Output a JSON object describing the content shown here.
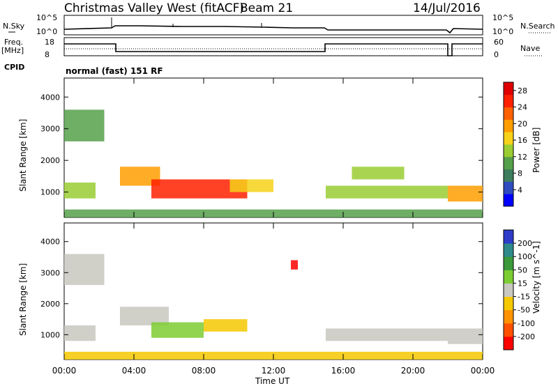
{
  "header": {
    "title": "Christmas Valley West (fitACF)",
    "beam": "Beam 21",
    "date": "14/Jul/2016"
  },
  "top_panels": {
    "nsky_label": "N.Sky",
    "nsky_ticks": [
      "10^5",
      "10^0"
    ],
    "nsearch_label": "N.Search",
    "nsearch_ticks": [
      "10^5",
      "10^0"
    ],
    "freq_label": "Freq.",
    "freq_unit": "[MHz]",
    "freq_ticks": [
      "18",
      "8"
    ],
    "nave_label": "Nave",
    "nave_ticks": [
      "60",
      "0"
    ],
    "cpid_label": "CPID",
    "cpid_value": "normal (fast) 151 RF"
  },
  "colors": {
    "power_scale": [
      "#0000ff",
      "#2e4cc0",
      "#3c7e5c",
      "#55a04a",
      "#9acd32",
      "#f6d21a",
      "#ff9d00",
      "#ff6000",
      "#ff2000",
      "#e00000"
    ],
    "velocity_scale": [
      "#2e3cc8",
      "#2e8a8a",
      "#3a9a3a",
      "#7ccd32",
      "#c8c8c0",
      "#f5c800",
      "#ff9200",
      "#ff5000",
      "#ff0000"
    ]
  },
  "chart_data": [
    {
      "type": "heatmap",
      "panel": "power",
      "ylabel": "Slant Range [km]",
      "xlabel": "Time UT",
      "x_ticks": [
        "00:00",
        "04:00",
        "08:00",
        "12:00",
        "16:00",
        "20:00",
        "00:00"
      ],
      "y_ticks": [
        "1000",
        "2000",
        "3000",
        "4000"
      ],
      "xlim_hours": [
        0,
        24
      ],
      "ylim_km": [
        200,
        4600
      ],
      "colorbar_label": "Power [dB]",
      "colorbar_ticks": [
        "4",
        "8",
        "12",
        "16",
        "20",
        "24",
        "28"
      ],
      "colorbar_range": [
        0,
        30
      ],
      "regions": [
        {
          "t0": 0.0,
          "t1": 1.8,
          "r0": 800,
          "r1": 1300,
          "value": 14
        },
        {
          "t0": 0.0,
          "t1": 2.3,
          "r0": 2600,
          "r1": 3600,
          "value": 9
        },
        {
          "t0": 3.2,
          "t1": 5.5,
          "r0": 1200,
          "r1": 1800,
          "value": 20
        },
        {
          "t0": 5.0,
          "t1": 10.5,
          "r0": 800,
          "r1": 1400,
          "value": 24
        },
        {
          "t0": 9.5,
          "t1": 12.0,
          "r0": 1000,
          "r1": 1400,
          "value": 16
        },
        {
          "t0": 15.0,
          "t1": 22.0,
          "r0": 800,
          "r1": 1200,
          "value": 13
        },
        {
          "t0": 16.5,
          "t1": 19.5,
          "r0": 1400,
          "r1": 1800,
          "value": 12
        },
        {
          "t0": 22.0,
          "t1": 24.0,
          "r0": 700,
          "r1": 1200,
          "value": 20
        },
        {
          "t0": 0.0,
          "t1": 24.0,
          "r0": 200,
          "r1": 450,
          "value": 10
        }
      ]
    },
    {
      "type": "heatmap",
      "panel": "velocity",
      "ylabel": "Slant Range [km]",
      "xlabel": "Time UT",
      "x_ticks": [
        "00:00",
        "04:00",
        "08:00",
        "12:00",
        "16:00",
        "20:00",
        "00:00"
      ],
      "y_ticks": [
        "1000",
        "2000",
        "3000",
        "4000"
      ],
      "xlim_hours": [
        0,
        24
      ],
      "ylim_km": [
        200,
        4600
      ],
      "colorbar_label": "Velocity [m s^-1]",
      "colorbar_ticks": [
        "200",
        "100",
        "50",
        "15",
        "-15",
        "-50",
        "-100",
        "-200"
      ],
      "colorbar_range": [
        -250,
        250
      ],
      "regions": [
        {
          "t0": 0.0,
          "t1": 1.8,
          "r0": 800,
          "r1": 1300,
          "value": 0
        },
        {
          "t0": 0.0,
          "t1": 2.3,
          "r0": 2600,
          "r1": 3600,
          "value": 0
        },
        {
          "t0": 3.2,
          "t1": 6.0,
          "r0": 1300,
          "r1": 1900,
          "value": 0
        },
        {
          "t0": 5.0,
          "t1": 8.0,
          "r0": 900,
          "r1": 1400,
          "value": 30
        },
        {
          "t0": 8.0,
          "t1": 10.5,
          "r0": 1100,
          "r1": 1500,
          "value": -60
        },
        {
          "t0": 15.0,
          "t1": 22.0,
          "r0": 800,
          "r1": 1200,
          "value": 0
        },
        {
          "t0": 22.0,
          "t1": 24.0,
          "r0": 700,
          "r1": 1200,
          "value": 0
        },
        {
          "t0": 0.0,
          "t1": 24.0,
          "r0": 200,
          "r1": 450,
          "value": -40
        },
        {
          "t0": 13.0,
          "t1": 13.4,
          "r0": 3100,
          "r1": 3400,
          "value": -200
        }
      ]
    }
  ]
}
